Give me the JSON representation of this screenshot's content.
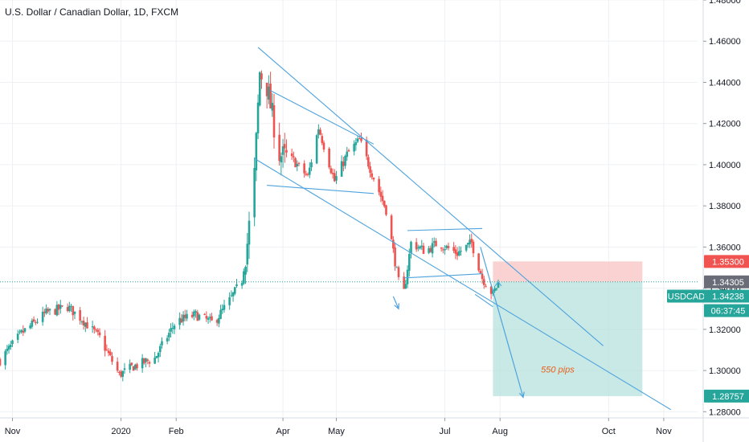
{
  "header": {
    "title": "U.S. Dollar / Canadian Dollar, 1D, FXCM"
  },
  "colors": {
    "up": "#26a69a",
    "down": "#ef5350",
    "trend": "#4ea3dd",
    "target_zone": "#b2dfdb",
    "stop_zone": "#f9caca",
    "tag_teal": "#26a69a",
    "tag_red": "#f05350",
    "tag_grey": "#6a6d78"
  },
  "price_axis": {
    "ticks": [
      "1.48000",
      "1.46000",
      "1.44000",
      "1.42000",
      "1.40000",
      "1.38000",
      "1.36000",
      "1.34000",
      "1.32000",
      "1.30000",
      "1.28000"
    ]
  },
  "time_axis": {
    "labels": [
      "Nov",
      "2020",
      "Feb",
      "Apr",
      "May",
      "Jul",
      "Aug",
      "Oct",
      "Nov"
    ]
  },
  "price_tags": {
    "stop": "1.35300",
    "entry": "1.34305",
    "symbol": "USDCAD",
    "last": "1.34238",
    "countdown": "06:37:45",
    "target": "1.28757"
  },
  "annotation": {
    "pips": "550 pips"
  },
  "chart_data": {
    "type": "candlestick",
    "title": "U.S. Dollar / Canadian Dollar, 1D, FXCM",
    "ylim": [
      1.277,
      1.48
    ],
    "y_ticks": [
      1.28,
      1.3,
      1.32,
      1.34,
      1.36,
      1.38,
      1.4,
      1.42,
      1.44,
      1.46,
      1.48
    ],
    "x_range": [
      "2019-10-25",
      "2020-11-20"
    ],
    "close_anchors": [
      [
        "2019-10-25",
        1.305
      ],
      [
        "2019-11-06",
        1.318
      ],
      [
        "2019-11-20",
        1.328
      ],
      [
        "2019-12-02",
        1.331
      ],
      [
        "2019-12-10",
        1.325
      ],
      [
        "2019-12-20",
        1.316
      ],
      [
        "2019-12-31",
        1.298
      ],
      [
        "2020-01-08",
        1.302
      ],
      [
        "2020-01-20",
        1.306
      ],
      [
        "2020-02-01",
        1.324
      ],
      [
        "2020-02-12",
        1.327
      ],
      [
        "2020-02-22",
        1.323
      ],
      [
        "2020-03-02",
        1.334
      ],
      [
        "2020-03-09",
        1.344
      ],
      [
        "2020-03-12",
        1.362
      ],
      [
        "2020-03-16",
        1.395
      ],
      [
        "2020-03-19",
        1.445
      ],
      [
        "2020-03-23",
        1.438
      ],
      [
        "2020-03-30",
        1.405
      ],
      [
        "2020-04-07",
        1.402
      ],
      [
        "2020-04-15",
        1.394
      ],
      [
        "2020-04-21",
        1.418
      ],
      [
        "2020-04-30",
        1.392
      ],
      [
        "2020-05-07",
        1.405
      ],
      [
        "2020-05-14",
        1.412
      ],
      [
        "2020-05-21",
        1.396
      ],
      [
        "2020-05-29",
        1.378
      ],
      [
        "2020-06-05",
        1.343
      ],
      [
        "2020-06-08",
        1.338
      ],
      [
        "2020-06-12",
        1.362
      ],
      [
        "2020-06-20",
        1.358
      ],
      [
        "2020-06-27",
        1.362
      ],
      [
        "2020-07-08",
        1.357
      ],
      [
        "2020-07-16",
        1.362
      ],
      [
        "2020-07-22",
        1.345
      ],
      [
        "2020-07-28",
        1.337
      ],
      [
        "2020-07-31",
        1.34238
      ]
    ],
    "current_price": 1.34238,
    "trade": {
      "entry": 1.34305,
      "stop": 1.353,
      "target": 1.28757,
      "pips": 550
    },
    "trend_lines": [
      {
        "from": [
          "2020-03-16",
          1.403
        ],
        "to": [
          "2020-11-05",
          1.281
        ]
      },
      {
        "from": [
          "2020-03-18",
          1.457
        ],
        "to": [
          "2020-09-28",
          1.312
        ]
      },
      {
        "from": [
          "2020-03-25",
          1.436
        ],
        "to": [
          "2020-05-22",
          1.41
        ]
      },
      {
        "from": [
          "2020-03-23",
          1.39
        ],
        "to": [
          "2020-05-22",
          1.386
        ]
      },
      {
        "from": [
          "2020-06-10",
          1.368
        ],
        "to": [
          "2020-07-22",
          1.369
        ]
      },
      {
        "from": [
          "2020-06-08",
          1.345
        ],
        "to": [
          "2020-07-22",
          1.347
        ]
      },
      {
        "from": [
          "2020-07-18",
          1.337
        ],
        "to": [
          "2020-07-28",
          1.331
        ]
      }
    ],
    "arrows": [
      {
        "from": [
          "2020-06-02",
          1.336
        ],
        "to": [
          "2020-06-05",
          1.33
        ]
      },
      {
        "from": [
          "2020-07-21",
          1.36
        ],
        "to": [
          "2020-08-14",
          1.287
        ]
      }
    ]
  }
}
